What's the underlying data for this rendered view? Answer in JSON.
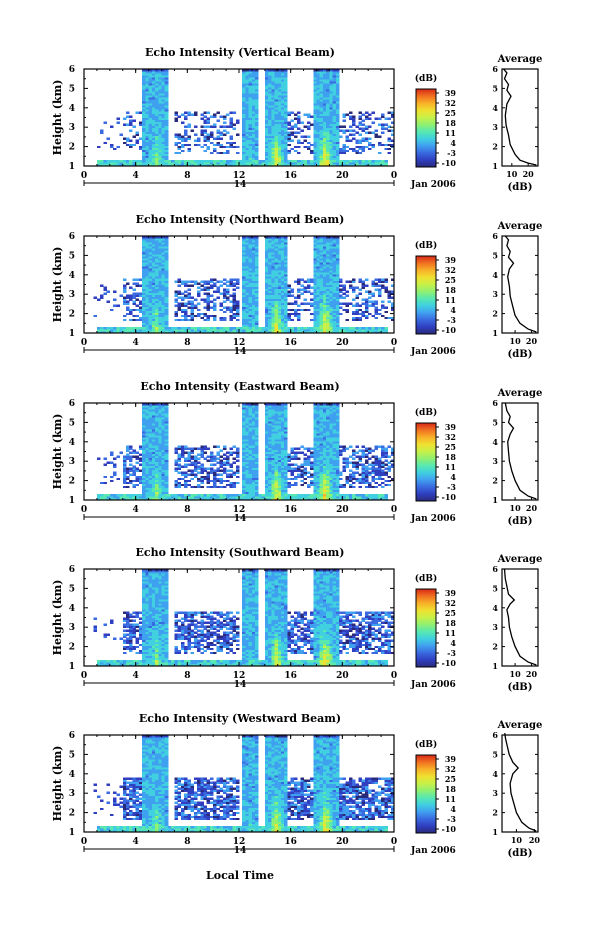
{
  "chart_data": {
    "type": "heatmap",
    "xlabel": "Local Time",
    "date_label": "Jan 2006",
    "day_label": "14",
    "colorbar": {
      "unit": "(dB)",
      "ticks": [
        "39",
        "32",
        "25",
        "18",
        "11",
        "4",
        "-3",
        "-10"
      ],
      "range": [
        -10,
        39
      ]
    },
    "palette": [
      "#2a2a7a",
      "#2f3fc0",
      "#3a6ae0",
      "#40a0f0",
      "#40d0e0",
      "#58e8b0",
      "#90f070",
      "#c8f048",
      "#f0e030",
      "#f8b028",
      "#f07020",
      "#d82818"
    ],
    "panels": [
      {
        "title": "Echo Intensity (Vertical Beam)",
        "ylabel": "Height (km)",
        "xticks": [
          "0",
          "4",
          "8",
          "12",
          "16",
          "20",
          "0"
        ],
        "xlim": [
          0,
          24
        ],
        "yticks": [
          "1",
          "2",
          "3",
          "4",
          "5",
          "6"
        ],
        "ylim": [
          1,
          6
        ],
        "profile": {
          "title": "Average",
          "xlabel": "(dB)",
          "xticks": [
            "10",
            "20"
          ],
          "xlim": [
            4,
            26
          ],
          "points": [
            [
              25,
              1.05
            ],
            [
              20,
              1.15
            ],
            [
              15,
              1.3
            ],
            [
              12,
              1.6
            ],
            [
              9,
              2.1
            ],
            [
              8,
              2.6
            ],
            [
              6.5,
              3.1
            ],
            [
              6,
              3.6
            ],
            [
              7,
              4.2
            ],
            [
              9.5,
              4.6
            ],
            [
              7,
              4.9
            ],
            [
              8,
              5.2
            ],
            [
              5.5,
              5.5
            ],
            [
              7,
              5.8
            ],
            [
              5,
              6.0
            ]
          ]
        }
      },
      {
        "title": "Echo Intensity (Northward Beam)",
        "ylabel": "Height (km)",
        "xticks": [
          "0",
          "4",
          "8",
          "12",
          "16",
          "20",
          "0"
        ],
        "xlim": [
          0,
          24
        ],
        "yticks": [
          "1",
          "2",
          "3",
          "4",
          "5",
          "6"
        ],
        "ylim": [
          1,
          6
        ],
        "profile": {
          "title": "Average",
          "xlabel": "(dB)",
          "xticks": [
            "10",
            "20"
          ],
          "xlim": [
            2,
            24
          ],
          "points": [
            [
              23,
              1.05
            ],
            [
              18,
              1.2
            ],
            [
              13,
              1.5
            ],
            [
              10,
              1.9
            ],
            [
              8.5,
              2.4
            ],
            [
              7,
              2.9
            ],
            [
              6.5,
              3.4
            ],
            [
              5.5,
              3.9
            ],
            [
              6.5,
              4.3
            ],
            [
              9,
              4.6
            ],
            [
              6,
              4.9
            ],
            [
              7,
              5.2
            ],
            [
              5,
              5.5
            ],
            [
              6,
              5.8
            ],
            [
              4,
              6.0
            ]
          ]
        }
      },
      {
        "title": "Echo Intensity (Eastward Beam)",
        "ylabel": "Height (km)",
        "xticks": [
          "0",
          "4",
          "8",
          "12",
          "16",
          "20",
          "0"
        ],
        "xlim": [
          0,
          24
        ],
        "yticks": [
          "1",
          "2",
          "3",
          "4",
          "5",
          "6"
        ],
        "ylim": [
          1,
          6
        ],
        "profile": {
          "title": "Average",
          "xlabel": "(dB)",
          "xticks": [
            "10",
            "20"
          ],
          "xlim": [
            2,
            24
          ],
          "points": [
            [
              23,
              1.05
            ],
            [
              18,
              1.2
            ],
            [
              13,
              1.5
            ],
            [
              10,
              2.0
            ],
            [
              8,
              2.5
            ],
            [
              6.5,
              3.0
            ],
            [
              6,
              3.5
            ],
            [
              5.5,
              4.0
            ],
            [
              7,
              4.4
            ],
            [
              9,
              4.7
            ],
            [
              6,
              5.0
            ],
            [
              7,
              5.3
            ],
            [
              5,
              5.6
            ],
            [
              4,
              6.0
            ]
          ]
        }
      },
      {
        "title": "Echo Intensity (Southward Beam)",
        "ylabel": "Height (km)",
        "xticks": [
          "0",
          "4",
          "8",
          "12",
          "16",
          "20",
          "0"
        ],
        "xlim": [
          0,
          24
        ],
        "yticks": [
          "1",
          "2",
          "3",
          "4",
          "5",
          "6"
        ],
        "ylim": [
          1,
          6
        ],
        "profile": {
          "title": "Average",
          "xlabel": "(dB)",
          "xticks": [
            "10",
            "20"
          ],
          "xlim": [
            2,
            24
          ],
          "points": [
            [
              23,
              1.05
            ],
            [
              18,
              1.2
            ],
            [
              13,
              1.5
            ],
            [
              10,
              2.0
            ],
            [
              8,
              2.5
            ],
            [
              6.5,
              3.0
            ],
            [
              6,
              3.5
            ],
            [
              5,
              3.9
            ],
            [
              7,
              4.2
            ],
            [
              9.5,
              4.4
            ],
            [
              6,
              4.7
            ],
            [
              5,
              5.1
            ],
            [
              4,
              5.5
            ],
            [
              3.5,
              6.0
            ]
          ]
        }
      },
      {
        "title": "Echo Intensity (Westward Beam)",
        "ylabel": "Height (km)",
        "xticks": [
          "0",
          "4",
          "8",
          "12",
          "16",
          "20",
          "0"
        ],
        "xlim": [
          0,
          24
        ],
        "yticks": [
          "1",
          "2",
          "3",
          "4",
          "5",
          "6"
        ],
        "ylim": [
          1,
          6
        ],
        "profile": {
          "title": "Average",
          "xlabel": "(dB)",
          "xticks": [
            "10",
            "20"
          ],
          "xlim": [
            2,
            22
          ],
          "points": [
            [
              21,
              1.05
            ],
            [
              17,
              1.2
            ],
            [
              13,
              1.5
            ],
            [
              10,
              2.0
            ],
            [
              8.5,
              2.5
            ],
            [
              7,
              3.0
            ],
            [
              6.5,
              3.5
            ],
            [
              8,
              4.0
            ],
            [
              11,
              4.3
            ],
            [
              8,
              4.6
            ],
            [
              6,
              5.0
            ],
            [
              5,
              5.4
            ],
            [
              4,
              5.8
            ],
            [
              3.5,
              6.1
            ]
          ]
        }
      }
    ]
  }
}
